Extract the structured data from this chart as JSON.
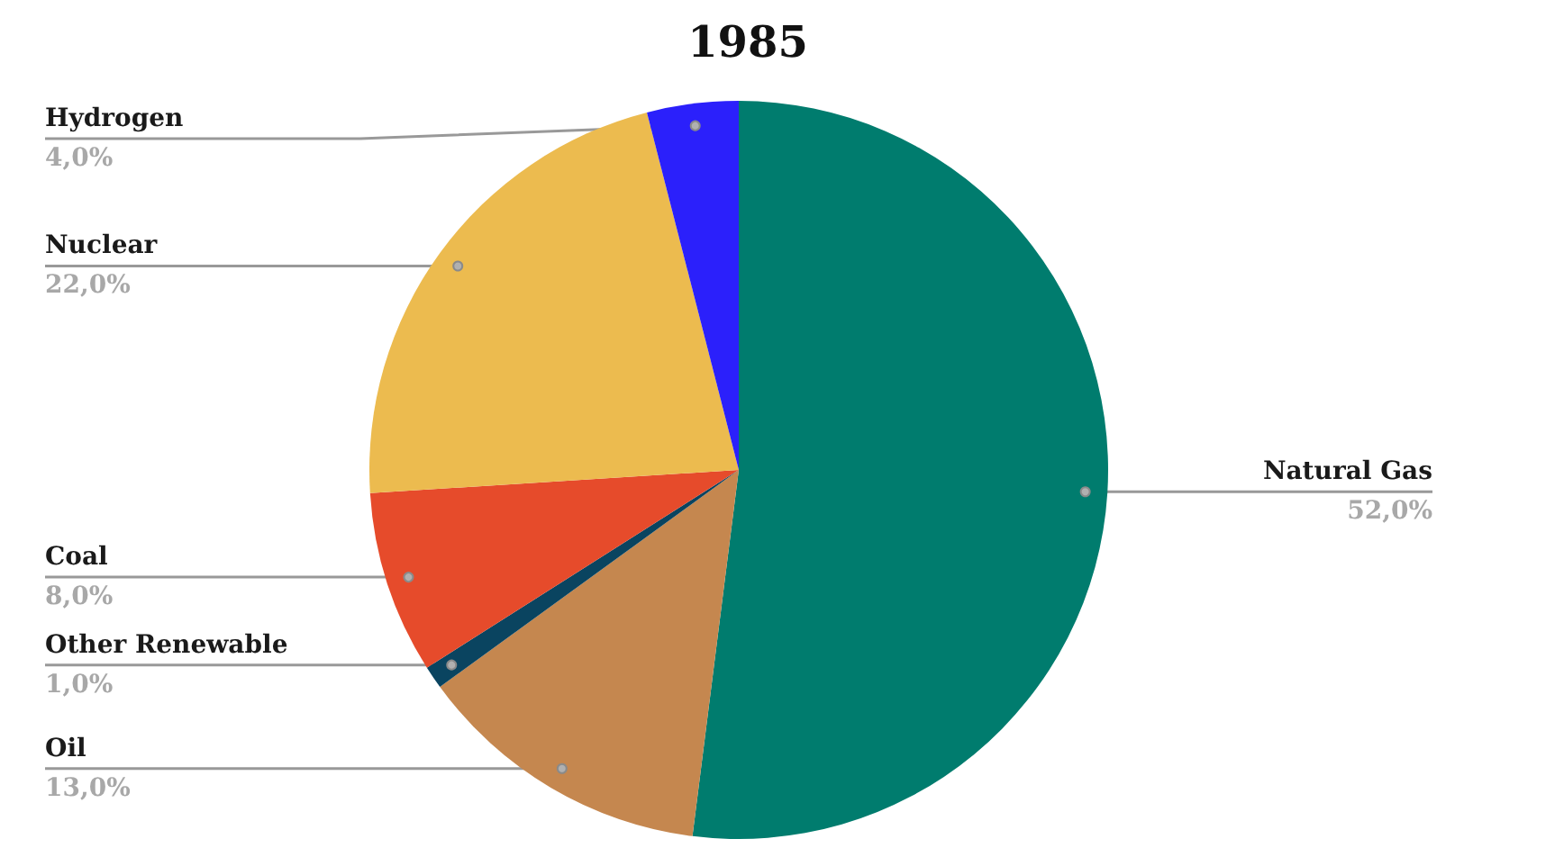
{
  "chart_data": {
    "type": "pie",
    "title": "1985",
    "categories": [
      "Natural Gas",
      "Oil",
      "Other Renewable",
      "Coal",
      "Nuclear",
      "Hydrogen"
    ],
    "values": [
      52,
      13,
      1,
      8,
      22,
      4
    ],
    "colors": [
      "#007c6e",
      "#c5874f",
      "#0a4460",
      "#e64b2b",
      "#ecbb4f",
      "#2b20fb"
    ],
    "value_labels": [
      "52,0%",
      "13,0%",
      "1,0%",
      "8,0%",
      "22,0%",
      "4,0%"
    ]
  }
}
